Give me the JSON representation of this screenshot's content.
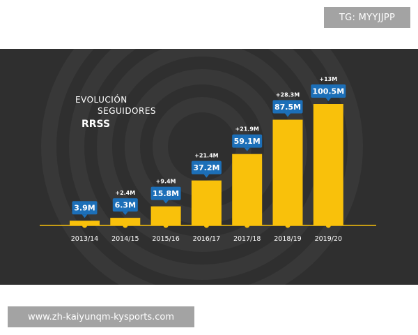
{
  "watermarks": {
    "top": "TG: MYYJJPP",
    "bottom": "www.zh-kaiyunqm-kysports.com"
  },
  "colors": {
    "background": "#2f2f2f",
    "bar": "#f9c10b",
    "label_box": "#1c6fb8",
    "text": "#ffffff"
  },
  "chart_data": {
    "type": "bar",
    "title_lines": [
      "EVOLUCIÓN",
      "SEGUIDORES",
      "RRSS"
    ],
    "categories": [
      "2013/14",
      "2014/15",
      "2015/16",
      "2016/17",
      "2017/18",
      "2018/19",
      "2019/20"
    ],
    "values": [
      3.9,
      6.3,
      15.8,
      37.2,
      59.1,
      87.5,
      100.5
    ],
    "value_labels": [
      "3.9M",
      "6.3M",
      "15.8M",
      "37.2M",
      "59.1M",
      "87.5M",
      "100.5M"
    ],
    "increments": [
      "",
      "+2.4M",
      "+9.4M",
      "+21.4M",
      "+21.9M",
      "+28.3M",
      "+13M"
    ],
    "xlabel": "",
    "ylabel": "",
    "grid": false,
    "legend": "none"
  }
}
